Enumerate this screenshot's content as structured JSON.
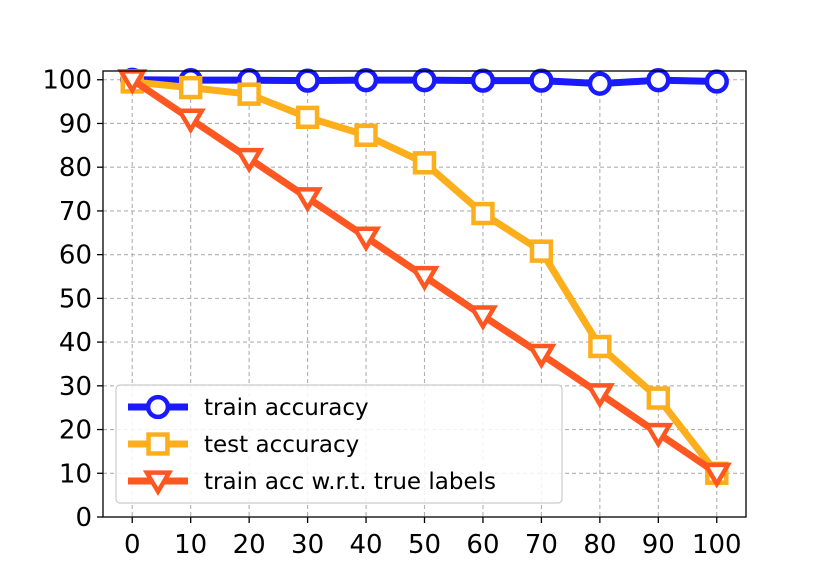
{
  "chart_data": {
    "type": "line",
    "title": "",
    "xlabel": "",
    "ylabel": "",
    "x": [
      0,
      10,
      20,
      30,
      40,
      50,
      60,
      70,
      80,
      90,
      100
    ],
    "xlim": [
      -5,
      105
    ],
    "ylim": [
      0,
      102
    ],
    "xticks": [
      0,
      10,
      20,
      30,
      40,
      50,
      60,
      70,
      80,
      90,
      100
    ],
    "yticks": [
      0,
      10,
      20,
      30,
      40,
      50,
      60,
      70,
      80,
      90,
      100
    ],
    "grid": true,
    "legend_position": "lower-left",
    "series": [
      {
        "name": "train accuracy",
        "color": "#1a1aff",
        "marker": "circle",
        "values": [
          100,
          99.9,
          99.9,
          99.8,
          99.9,
          99.9,
          99.8,
          99.8,
          99.1,
          99.9,
          99.6
        ]
      },
      {
        "name": "test accuracy",
        "color": "#fdae1b",
        "marker": "square",
        "values": [
          99.5,
          98.2,
          96.7,
          91.4,
          87.3,
          81.0,
          69.4,
          60.8,
          39.0,
          27.2,
          10.0
        ]
      },
      {
        "name": "train acc w.r.t. true labels",
        "color": "#ff5722",
        "marker": "triangle-down",
        "values": [
          100,
          91,
          82,
          73,
          64,
          55,
          46,
          37.2,
          28.2,
          19.1,
          10.0
        ]
      }
    ]
  }
}
